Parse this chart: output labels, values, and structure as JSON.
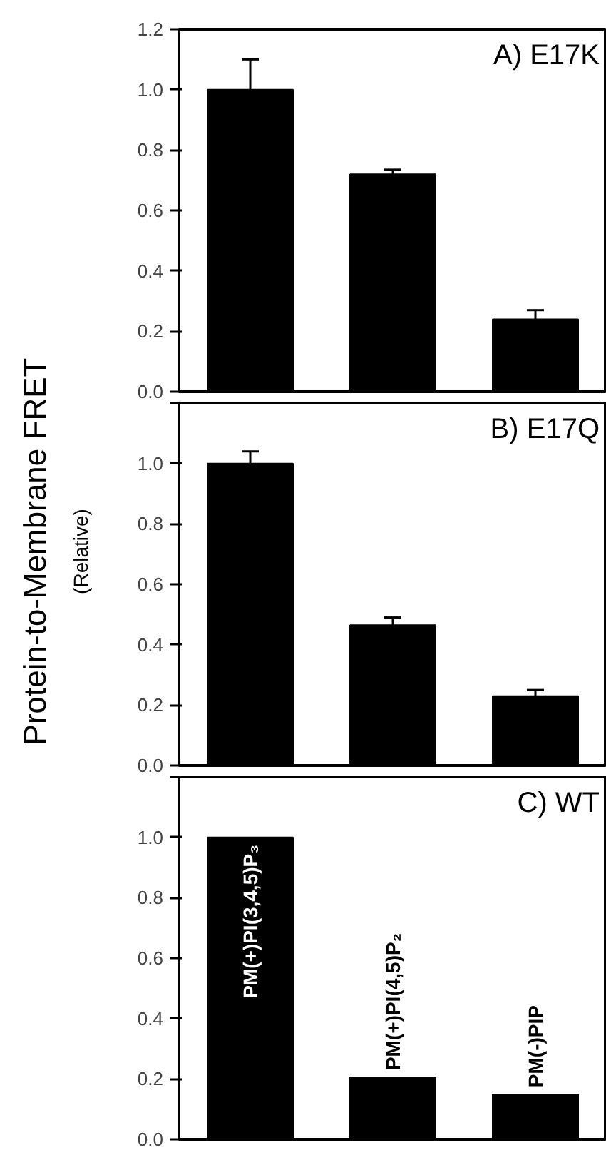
{
  "chart_data": [
    {
      "type": "bar",
      "title": "A) E17K",
      "categories": [
        null,
        null,
        null
      ],
      "values": [
        1.0,
        0.72,
        0.24
      ],
      "color": "#000000",
      "errors": [
        [
          1.0,
          1.1
        ],
        [
          0.72,
          0.735
        ],
        [
          0.24,
          0.27
        ]
      ],
      "ylim": [
        0,
        1.2
      ],
      "yticks": [
        {
          "value": 0,
          "label": "0.0"
        },
        0.2,
        0.4,
        0.6,
        0.8,
        {
          "value": 1,
          "label": "1.0"
        },
        1.2
      ],
      "tick_labels": "y"
    },
    {
      "type": "bar",
      "title": "B) E17Q",
      "ylabel": "Protein-to-Membrane FRET\n(Relative)",
      "categories": [
        null,
        null,
        null
      ],
      "values": [
        1.0,
        0.465,
        0.23
      ],
      "color": "#000000",
      "errors": [
        [
          1.0,
          1.04
        ],
        [
          0.465,
          0.49
        ],
        [
          0.23,
          0.25
        ]
      ],
      "ylim": [
        0,
        1.2
      ],
      "yticks": [
        {
          "value": 0,
          "label": "0.0"
        },
        0.2,
        0.4,
        0.6,
        0.8,
        {
          "value": 1,
          "label": "1.0"
        },
        {
          "value": 1.2,
          "label": null
        }
      ],
      "tick_labels": "y"
    },
    {
      "type": "bar",
      "title": "C) WT",
      "categories": [
        "PM(+)PI(3,4,5)P₃",
        "PM(+)PI(4,5)P₂",
        "PM(-)PIP"
      ],
      "values": [
        1.0,
        0.205,
        0.148
      ],
      "color": "#000000",
      "ylim": [
        0,
        1.2
      ],
      "yticks": [
        {
          "value": 0,
          "label": "0.0"
        },
        0.2,
        0.4,
        0.6,
        0.8,
        {
          "value": 1,
          "label": "1.0"
        },
        {
          "value": 1.2,
          "label": null
        }
      ]
    }
  ]
}
